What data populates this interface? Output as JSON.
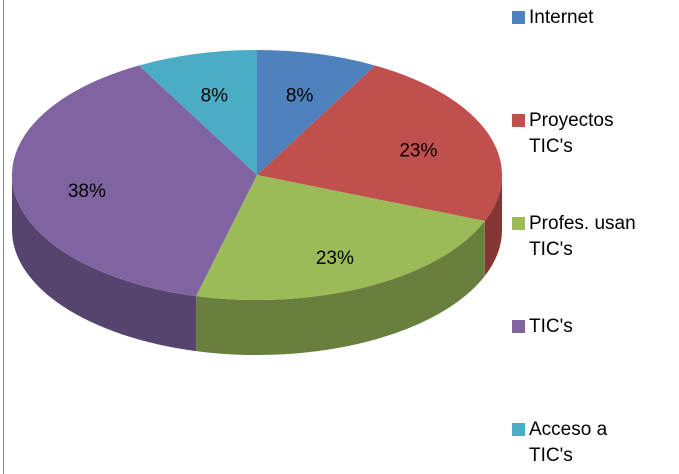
{
  "chart_data": {
    "type": "pie",
    "categories": [
      "Internet",
      "Proyectos TIC's",
      "Profes. usan TIC's",
      "TIC's",
      "Acceso a TIC's"
    ],
    "values": [
      8,
      23,
      23,
      38,
      8
    ],
    "value_labels": [
      "8%",
      "23%",
      "23%",
      "38%",
      "8%"
    ],
    "colors": [
      "#4f81bd",
      "#c0504d",
      "#9bbb59",
      "#8064a2",
      "#4bacc6"
    ],
    "legend": "right"
  }
}
